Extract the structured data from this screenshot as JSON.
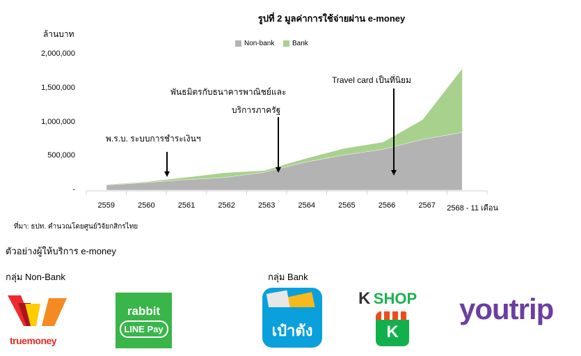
{
  "chart_data": {
    "type": "area",
    "stacked": true,
    "title": "รูปที่ 2 มูลค่าการใช้จ่ายผ่าน e-money",
    "ylabel": "ล้านบาท",
    "xlabel": "",
    "categories": [
      "2559",
      "2560",
      "2561",
      "2562",
      "2563",
      "2564",
      "2565",
      "2566",
      "2567",
      "2568 - 11 เดือน"
    ],
    "series": [
      {
        "name": "Non-bank",
        "color": "#b3b3b3",
        "values": [
          75000,
          112000,
          155000,
          187000,
          265000,
          408000,
          517000,
          602000,
          748000,
          850000
        ]
      },
      {
        "name": "Bank",
        "color": "#a9d18e",
        "values": [
          7000,
          10000,
          32000,
          68000,
          24000,
          51000,
          95000,
          105000,
          289000,
          936000
        ]
      }
    ],
    "ylim": [
      0,
      2000000
    ],
    "yticks": [
      0,
      500000,
      1000000,
      1500000,
      2000000
    ],
    "ytick_labels": [
      "-",
      "500,000",
      "1,000,000",
      "1,500,000",
      "2,000,000"
    ],
    "grid": false,
    "legend_position": "top-center",
    "annotations": [
      {
        "text": "พ.ร.บ. ระบบการชำระเงินฯ",
        "category": "2560-2561"
      },
      {
        "text_lines": [
          "พันธมิตรกับธนาคารพาณิชย์และ",
          "บริการภาครัฐ"
        ],
        "category": "2563-2564"
      },
      {
        "text": "Travel card เป็นที่นิยม",
        "category": "2566-2567"
      }
    ]
  },
  "source": "ที่มา: ธปท. คำนวณโดยศูนย์วิจัยกสิกรไทย",
  "section_title": "ตัวอย่างผู้ให้บริการ e-money",
  "groups": {
    "nonbank": {
      "label": "กลุ่ม Non-Bank",
      "logos": [
        {
          "name": "truemoney",
          "text": "truemoney"
        },
        {
          "name": "rabbit-line-pay",
          "text1": "rabbit",
          "text2": "LINE Pay"
        }
      ]
    },
    "bank": {
      "label": "กลุ่ม Bank",
      "logos": [
        {
          "name": "paotang",
          "text": "เป๋าตัง"
        },
        {
          "name": "kshop",
          "text1": "K",
          "text2": "SHOP",
          "text3": "K"
        },
        {
          "name": "youtrip",
          "text": "youtrip"
        }
      ]
    }
  }
}
